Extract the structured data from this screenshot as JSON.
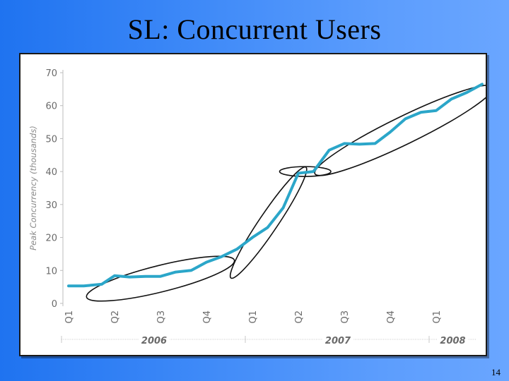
{
  "slide": {
    "title": "SL:  Concurrent Users",
    "page_number": "14"
  },
  "chart_data": {
    "type": "line",
    "title": "",
    "ylabel": "Peak Concurrency (thousands)",
    "xlabel": "",
    "ylim": [
      0,
      70
    ],
    "yticks": [
      0,
      10,
      20,
      30,
      40,
      50,
      60,
      70
    ],
    "quarter_ticks": [
      "Q1",
      "Q2",
      "Q3",
      "Q4",
      "Q1",
      "Q2",
      "Q3",
      "Q4",
      "Q1"
    ],
    "year_labels": [
      {
        "label": "2006",
        "from": 0,
        "to": 4
      },
      {
        "label": "2007",
        "from": 4,
        "to": 8
      },
      {
        "label": "2008",
        "from": 8,
        "to": 9
      }
    ],
    "grid": false,
    "legend": "none",
    "line_color": "#2ba6c9",
    "series": [
      {
        "points": [
          [
            0.0,
            5.3
          ],
          [
            0.33,
            5.3
          ],
          [
            0.72,
            5.8
          ],
          [
            1.0,
            8.4
          ],
          [
            1.33,
            8.0
          ],
          [
            1.67,
            8.2
          ],
          [
            2.0,
            8.2
          ],
          [
            2.33,
            9.5
          ],
          [
            2.67,
            10.0
          ],
          [
            3.0,
            12.5
          ],
          [
            3.33,
            14.2
          ],
          [
            3.67,
            16.5
          ],
          [
            4.0,
            20.0
          ],
          [
            4.33,
            23.0
          ],
          [
            4.67,
            29.0
          ],
          [
            5.0,
            39.5
          ],
          [
            5.33,
            40.0
          ],
          [
            5.67,
            46.5
          ],
          [
            6.0,
            48.5
          ],
          [
            6.33,
            48.3
          ],
          [
            6.67,
            48.5
          ],
          [
            7.0,
            52.0
          ],
          [
            7.33,
            56.0
          ],
          [
            7.67,
            58.0
          ],
          [
            8.0,
            58.5
          ],
          [
            8.33,
            62.0
          ],
          [
            8.67,
            64.0
          ],
          [
            9.0,
            66.5
          ]
        ]
      }
    ],
    "annotations": [
      {
        "type": "ellipse",
        "center": [
          2.0,
          7.5
        ],
        "radii_x_units": 2.7,
        "radii_y_units": 4.0,
        "angle_deg": -14
      },
      {
        "type": "ellipse",
        "center": [
          4.35,
          24.5
        ],
        "radii_x_units": 2.3,
        "radii_y_units": 2.8,
        "angle_deg": -56
      },
      {
        "type": "ellipse",
        "center": [
          5.15,
          40.0
        ],
        "radii_x_units": 0.5,
        "radii_y_units": 1.5,
        "angle_deg": 0
      },
      {
        "type": "ellipse",
        "center": [
          7.3,
          52.5
        ],
        "radii_x_units": 3.7,
        "radii_y_units": 4.2,
        "angle_deg": -26
      }
    ]
  }
}
